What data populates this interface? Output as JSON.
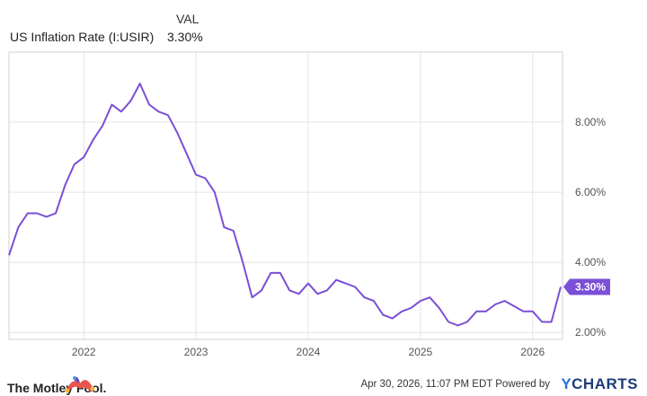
{
  "legend": {
    "header": "VAL",
    "series_name": "US Inflation Rate (I:USIR)",
    "series_value": "3.30%"
  },
  "footer": {
    "brand": "The Motley Fool.",
    "timestamp": "Apr 30, 2026, 11:07 PM EDT Powered by",
    "provider": "YCHARTS"
  },
  "colors": {
    "line": "#7b4fd6",
    "grid": "#e4e4e4",
    "axis_text": "#555555",
    "badge": "#7b4fd6"
  },
  "chart_data": {
    "type": "line",
    "title": "",
    "xlabel": "",
    "ylabel": "",
    "x_ticks": [
      "2022",
      "2023",
      "2024",
      "2025",
      "2026"
    ],
    "y_ticks": [
      "2.00%",
      "4.00%",
      "6.00%",
      "8.00%"
    ],
    "y_range": [
      1.8,
      10.0
    ],
    "last_value_label": "3.30%",
    "grid": true,
    "series": [
      {
        "name": "US Inflation Rate (I:USIR)",
        "x": [
          "2021-05",
          "2021-06",
          "2021-07",
          "2021-08",
          "2021-09",
          "2021-10",
          "2021-11",
          "2021-12",
          "2022-01",
          "2022-02",
          "2022-03",
          "2022-04",
          "2022-05",
          "2022-06",
          "2022-07",
          "2022-08",
          "2022-09",
          "2022-10",
          "2022-11",
          "2022-12",
          "2023-01",
          "2023-02",
          "2023-03",
          "2023-04",
          "2023-05",
          "2023-06",
          "2023-07",
          "2023-08",
          "2023-09",
          "2023-10",
          "2023-11",
          "2023-12",
          "2024-01",
          "2024-02",
          "2024-03",
          "2024-04",
          "2024-05",
          "2024-06",
          "2024-07",
          "2024-08",
          "2024-09",
          "2024-10",
          "2024-11",
          "2024-12",
          "2025-01",
          "2025-02",
          "2025-03",
          "2025-04",
          "2025-05",
          "2025-06",
          "2025-07",
          "2025-08",
          "2025-09",
          "2025-10",
          "2025-11",
          "2025-12",
          "2026-01",
          "2026-02",
          "2026-03"
        ],
        "values": [
          4.2,
          5.0,
          5.4,
          5.4,
          5.3,
          5.4,
          6.2,
          6.8,
          7.0,
          7.5,
          7.9,
          8.5,
          8.3,
          8.6,
          9.1,
          8.5,
          8.3,
          8.2,
          7.7,
          7.1,
          6.5,
          6.4,
          6.0,
          5.0,
          4.9,
          4.0,
          3.0,
          3.2,
          3.7,
          3.7,
          3.2,
          3.1,
          3.4,
          3.1,
          3.2,
          3.5,
          3.4,
          3.3,
          3.0,
          2.9,
          2.5,
          2.4,
          2.6,
          2.7,
          2.9,
          3.0,
          2.7,
          2.3,
          2.2,
          2.3,
          2.6,
          2.6,
          2.8,
          2.9,
          2.75,
          2.6,
          2.6,
          2.3,
          2.3
        ]
      }
    ],
    "last_point": {
      "x": "2026-04",
      "value": 3.3
    }
  }
}
